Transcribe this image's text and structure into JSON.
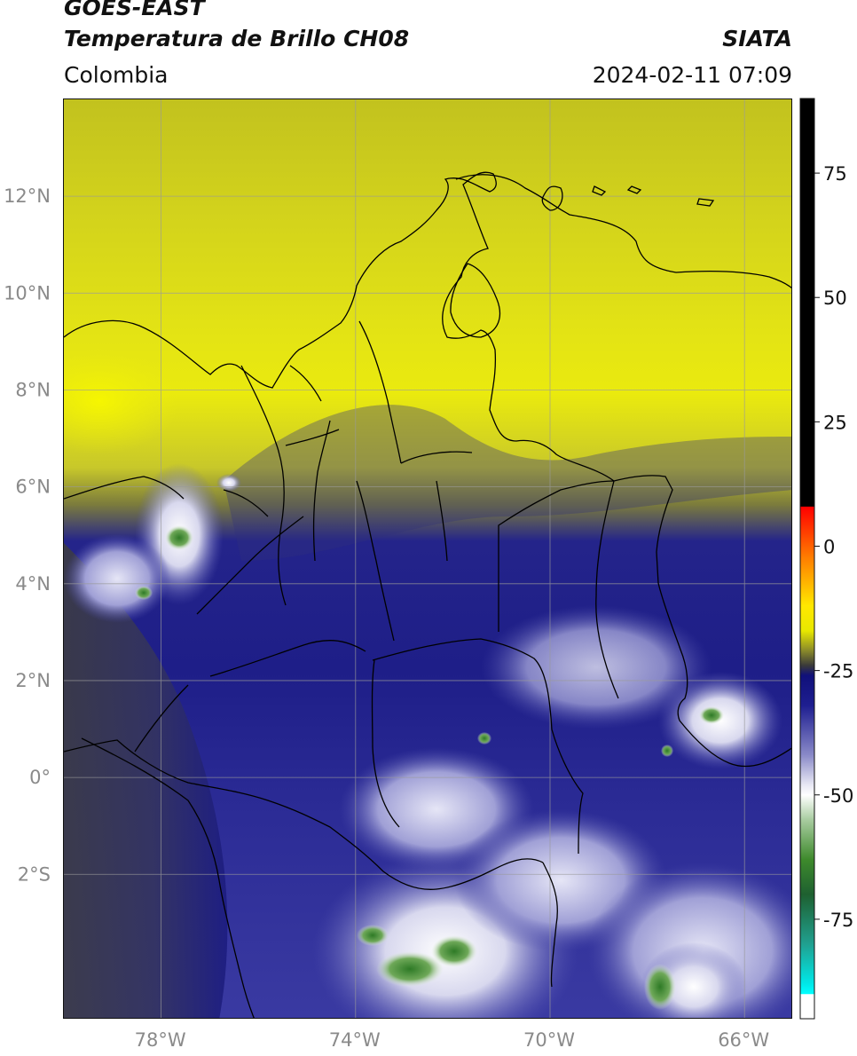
{
  "header": {
    "title_line1": "GOES-EAST",
    "title_line2": "Temperatura de Brillo CH08",
    "brand": "SIATA",
    "region": "Colombia",
    "timestamp": "2024-02-11 07:09"
  },
  "map": {
    "lon_range": [
      -80,
      -65
    ],
    "lat_range": [
      -5,
      14
    ],
    "lat_ticks": [
      {
        "value": 12,
        "label": "12°N"
      },
      {
        "value": 10,
        "label": "10°N"
      },
      {
        "value": 8,
        "label": "8°N"
      },
      {
        "value": 6,
        "label": "6°N"
      },
      {
        "value": 4,
        "label": "4°N"
      },
      {
        "value": 2,
        "label": "2°N"
      },
      {
        "value": 0,
        "label": "0°"
      },
      {
        "value": -2,
        "label": "2°S"
      }
    ],
    "lon_ticks": [
      {
        "value": -78,
        "label": "78°W"
      },
      {
        "value": -74,
        "label": "74°W"
      },
      {
        "value": -70,
        "label": "70°W"
      },
      {
        "value": -66,
        "label": "66°W"
      }
    ],
    "grid": true,
    "colors": {
      "warm_yellow": "#d6d61c",
      "bright_yellow": "#f0f00a",
      "olive": "#8e8e2e",
      "navy": "#1c1c86",
      "mid_blue": "#3a3aa0",
      "pale_blue": "#9c9cd4",
      "cloud_white": "#f4f4fb",
      "green": "#3c8a2e",
      "dark_gray": "#3c3c44",
      "border_line": "#000000",
      "gridline": "#9a9a9a"
    }
  },
  "colorbar": {
    "range": [
      -95,
      90
    ],
    "ticks": [
      {
        "value": 75,
        "label": "75"
      },
      {
        "value": 50,
        "label": "50"
      },
      {
        "value": 25,
        "label": "25"
      },
      {
        "value": 0,
        "label": "0"
      },
      {
        "value": -25,
        "label": "-25"
      },
      {
        "value": -50,
        "label": "-50"
      },
      {
        "value": -75,
        "label": "-75"
      }
    ],
    "stops": [
      {
        "value": 90,
        "color": "#000000"
      },
      {
        "value": 8,
        "color": "#000000"
      },
      {
        "value": 7.9,
        "color": "#ff0000"
      },
      {
        "value": -2,
        "color": "#ff7a00"
      },
      {
        "value": -12,
        "color": "#ffe800"
      },
      {
        "value": -17,
        "color": "#e8e800"
      },
      {
        "value": -21,
        "color": "#8a8a2a"
      },
      {
        "value": -24,
        "color": "#3a3a3a"
      },
      {
        "value": -26,
        "color": "#10107a"
      },
      {
        "value": -32,
        "color": "#1e1e90"
      },
      {
        "value": -42,
        "color": "#8a8ac8"
      },
      {
        "value": -48,
        "color": "#e8e8f4"
      },
      {
        "value": -50,
        "color": "#ffffff"
      },
      {
        "value": -55,
        "color": "#a8cca0"
      },
      {
        "value": -63,
        "color": "#3e8a2c"
      },
      {
        "value": -70,
        "color": "#1e6030"
      },
      {
        "value": -80,
        "color": "#20a090"
      },
      {
        "value": -88,
        "color": "#00e8e8"
      },
      {
        "value": -90,
        "color": "#00ffff"
      },
      {
        "value": -90.1,
        "color": "#ffffff"
      },
      {
        "value": -95,
        "color": "#ffffff"
      }
    ]
  }
}
